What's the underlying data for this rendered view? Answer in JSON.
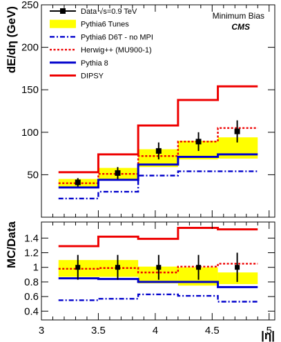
{
  "chart_data": [
    {
      "type": "line",
      "panel": "top",
      "ylabel": "dE/dη (GeV)",
      "xlim": [
        3.0,
        5.05
      ],
      "ylim": [
        0,
        250
      ],
      "yticks": [
        50,
        100,
        150,
        200,
        250
      ],
      "bin_edges": [
        3.15,
        3.5,
        3.85,
        4.2,
        4.55,
        4.9
      ],
      "bin_centers": [
        3.32,
        3.67,
        4.03,
        4.38,
        4.72
      ],
      "annotation_line1": "Minimum Bias",
      "annotation_line2": "CMS",
      "series": [
        {
          "name": "Pythia6 Tunes",
          "kind": "band",
          "low": [
            36,
            45,
            59,
            68,
            69
          ],
          "high": [
            45,
            58,
            80,
            90,
            94
          ],
          "color": "#ffff00"
        },
        {
          "name": "Pythia6 D6T - no MPI",
          "kind": "step",
          "values": [
            22,
            30,
            49,
            54,
            54
          ],
          "color": "#0000cc",
          "dash": "dashdot"
        },
        {
          "name": "Herwig++ (MU900-1)",
          "kind": "step",
          "values": [
            40,
            51,
            72,
            89,
            105
          ],
          "color": "#ee0000",
          "dash": "dotted"
        },
        {
          "name": "Pythia 8",
          "kind": "step",
          "values": [
            35,
            44,
            62,
            71,
            74
          ],
          "color": "#0000cc",
          "dash": "solid"
        },
        {
          "name": "DIPSY",
          "kind": "step",
          "values": [
            53,
            74,
            108,
            138,
            154
          ],
          "color": "#ee0000",
          "dash": "solid"
        },
        {
          "name": "Data √s=0.9 TeV",
          "kind": "points",
          "values": [
            41,
            52,
            78,
            89,
            101
          ],
          "errors": [
            5,
            7,
            10,
            11,
            13
          ],
          "color": "#000000"
        }
      ],
      "legend_order": [
        "Data √s=0.9 TeV",
        "Pythia6 Tunes",
        "Pythia6 D6T - no MPI",
        "Herwig++ (MU900-1)",
        "Pythia 8",
        "DIPSY"
      ],
      "legend_placement": "top-left"
    },
    {
      "type": "line",
      "panel": "bottom",
      "ylabel": "MC/Data",
      "xlabel": "|η|",
      "xlim": [
        3.0,
        5.05
      ],
      "ylim": [
        0.28,
        1.62
      ],
      "yticks": [
        0.4,
        0.6,
        0.8,
        1,
        1.2,
        1.4
      ],
      "ytick_labels": [
        "0.4",
        "0.6",
        "0.8",
        "1",
        "1.2",
        "1.4"
      ],
      "xticks": [
        3,
        3.5,
        4,
        4.5,
        5
      ],
      "xtick_labels": [
        "3",
        "3.5",
        "4",
        "4.5",
        "5"
      ],
      "bin_edges": [
        3.15,
        3.5,
        3.85,
        4.2,
        4.55,
        4.9
      ],
      "bin_centers": [
        3.32,
        3.67,
        4.03,
        4.38,
        4.72
      ],
      "series": [
        {
          "name": "Pythia6 Tunes",
          "kind": "band",
          "low": [
            0.87,
            0.87,
            0.78,
            0.75,
            0.77
          ],
          "high": [
            1.1,
            1.1,
            1.01,
            1.0,
            0.93
          ],
          "color": "#ffff00"
        },
        {
          "name": "Pythia6 D6T - no MPI",
          "kind": "step",
          "values": [
            0.55,
            0.57,
            0.63,
            0.61,
            0.53
          ],
          "color": "#0000cc",
          "dash": "dashdot"
        },
        {
          "name": "Herwig++ (MU900-1)",
          "kind": "step",
          "values": [
            0.98,
            0.99,
            0.93,
            1.01,
            1.05
          ],
          "color": "#ee0000",
          "dash": "dotted"
        },
        {
          "name": "Pythia 8",
          "kind": "step",
          "values": [
            0.85,
            0.84,
            0.8,
            0.8,
            0.73
          ],
          "color": "#0000cc",
          "dash": "solid"
        },
        {
          "name": "DIPSY",
          "kind": "step",
          "values": [
            1.29,
            1.42,
            1.39,
            1.54,
            1.52
          ],
          "color": "#ee0000",
          "dash": "solid"
        },
        {
          "name": "Data √s=0.9 TeV",
          "kind": "points",
          "values": [
            1.0,
            1.0,
            1.0,
            1.0,
            1.0
          ],
          "errors": [
            0.17,
            0.17,
            0.17,
            0.17,
            0.2
          ],
          "color": "#000000"
        }
      ]
    }
  ]
}
